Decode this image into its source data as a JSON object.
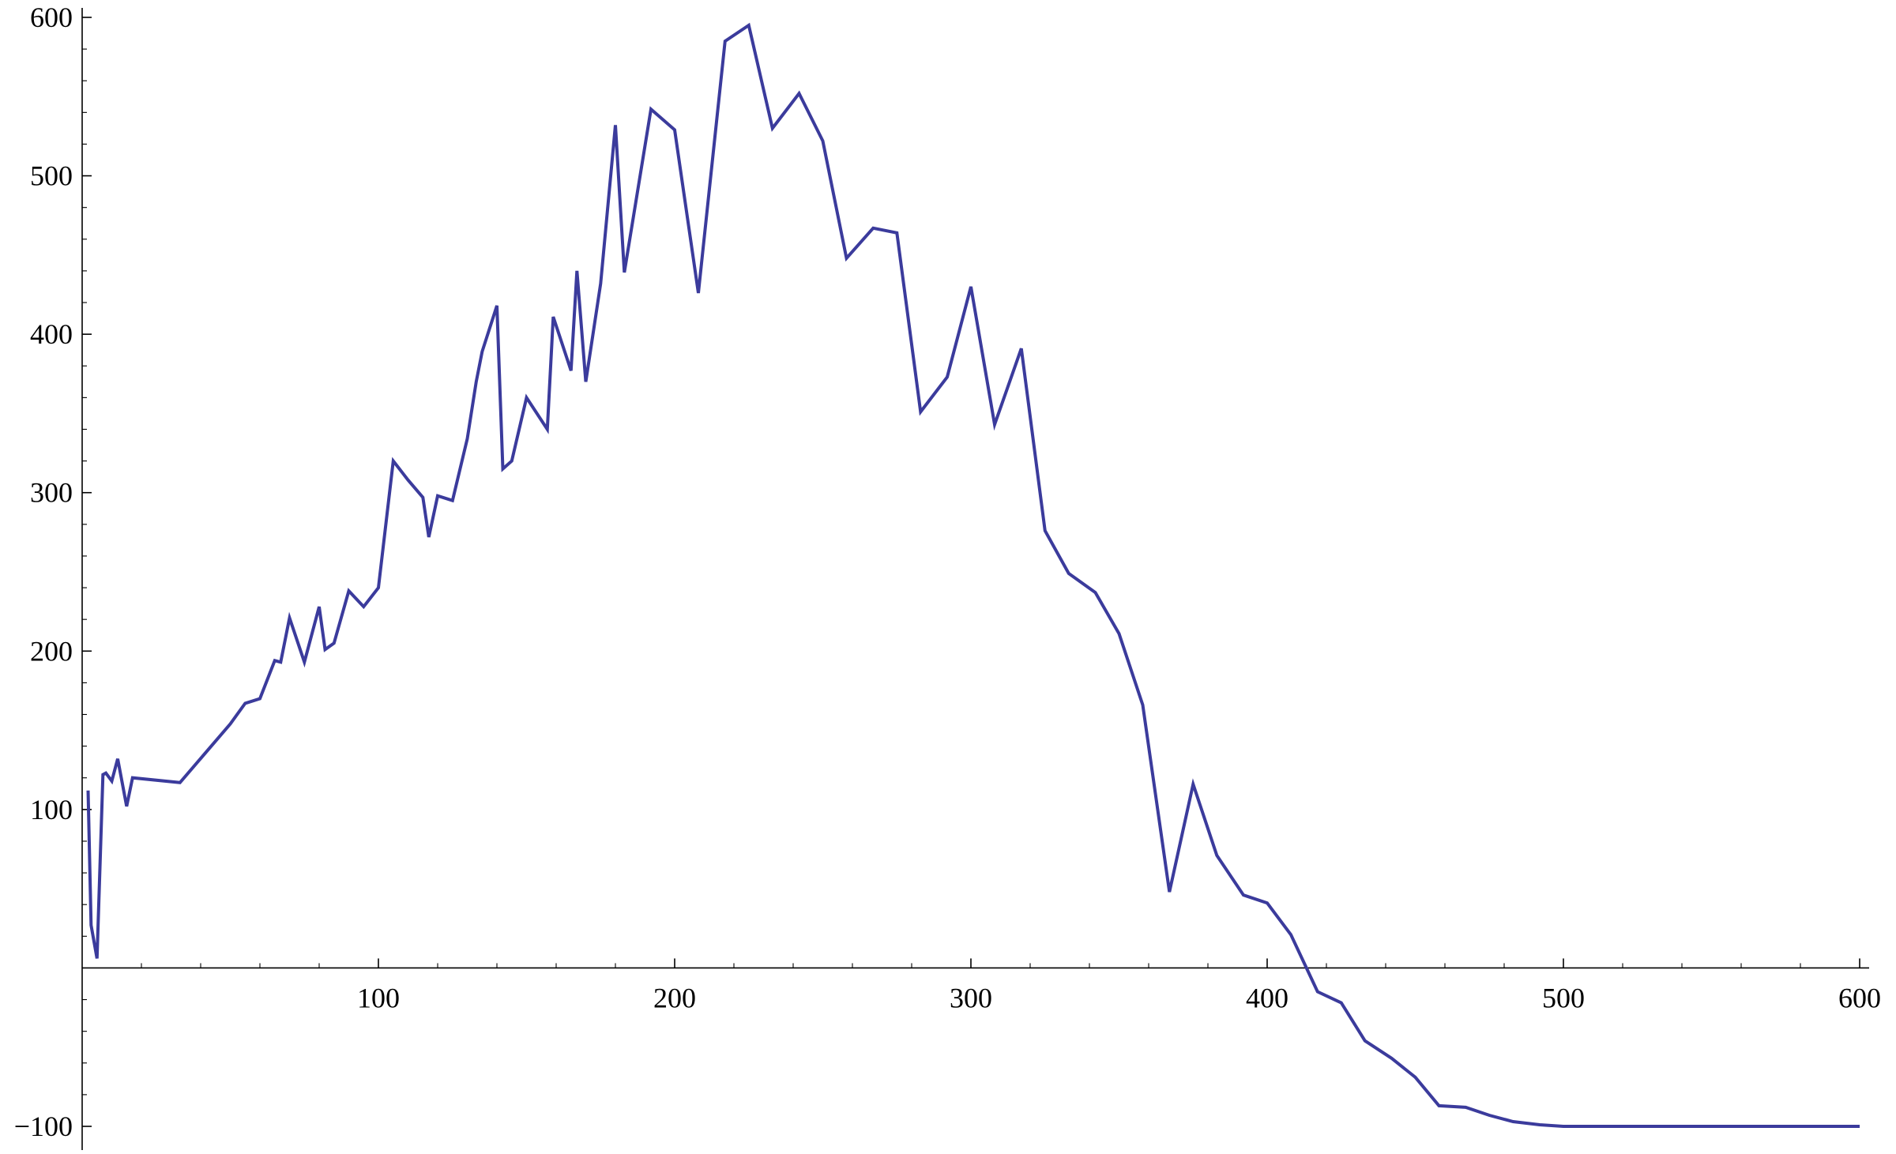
{
  "chart_data": {
    "type": "line",
    "title": "",
    "xlabel": "",
    "ylabel": "",
    "xlim": [
      0,
      600
    ],
    "ylim": [
      -100,
      600
    ],
    "grid": false,
    "legend": "none",
    "x_ticks": [
      {
        "value": 100,
        "label": "100"
      },
      {
        "value": 200,
        "label": "200"
      },
      {
        "value": 300,
        "label": "300"
      },
      {
        "value": 400,
        "label": "400"
      },
      {
        "value": 500,
        "label": "500"
      },
      {
        "value": 600,
        "label": "600"
      }
    ],
    "y_ticks": [
      {
        "value": -100,
        "label": "−100"
      },
      {
        "value": 100,
        "label": "100"
      },
      {
        "value": 200,
        "label": "200"
      },
      {
        "value": 300,
        "label": "300"
      },
      {
        "value": 400,
        "label": "400"
      },
      {
        "value": 500,
        "label": "500"
      },
      {
        "value": 600,
        "label": "600"
      }
    ],
    "series": [
      {
        "color": "#3b3b9c",
        "points": [
          [
            2,
            112
          ],
          [
            3,
            27
          ],
          [
            5,
            6
          ],
          [
            7,
            122
          ],
          [
            8,
            123
          ],
          [
            10,
            118
          ],
          [
            12,
            132
          ],
          [
            15,
            102
          ],
          [
            17,
            120
          ],
          [
            33,
            117
          ],
          [
            50,
            154
          ],
          [
            55,
            167
          ],
          [
            60,
            170
          ],
          [
            65,
            194
          ],
          [
            67,
            193
          ],
          [
            70,
            221
          ],
          [
            75,
            193
          ],
          [
            80,
            228
          ],
          [
            82,
            201
          ],
          [
            85,
            205
          ],
          [
            90,
            238
          ],
          [
            95,
            228
          ],
          [
            100,
            240
          ],
          [
            105,
            320
          ],
          [
            110,
            308
          ],
          [
            115,
            297
          ],
          [
            117,
            272
          ],
          [
            120,
            298
          ],
          [
            125,
            295
          ],
          [
            130,
            334
          ],
          [
            133,
            370
          ],
          [
            135,
            389
          ],
          [
            140,
            418
          ],
          [
            142,
            315
          ],
          [
            145,
            320
          ],
          [
            150,
            360
          ],
          [
            157,
            340
          ],
          [
            159,
            411
          ],
          [
            165,
            377
          ],
          [
            167,
            440
          ],
          [
            170,
            370
          ],
          [
            175,
            432
          ],
          [
            180,
            532
          ],
          [
            183,
            439
          ],
          [
            192,
            542
          ],
          [
            200,
            529
          ],
          [
            208,
            426
          ],
          [
            217,
            585
          ],
          [
            225,
            595
          ],
          [
            233,
            530
          ],
          [
            242,
            552
          ],
          [
            250,
            522
          ],
          [
            258,
            448
          ],
          [
            267,
            467
          ],
          [
            275,
            464
          ],
          [
            283,
            351
          ],
          [
            292,
            373
          ],
          [
            300,
            430
          ],
          [
            308,
            343
          ],
          [
            317,
            391
          ],
          [
            325,
            276
          ],
          [
            333,
            249
          ],
          [
            342,
            237
          ],
          [
            350,
            211
          ],
          [
            358,
            166
          ],
          [
            367,
            48
          ],
          [
            375,
            116
          ],
          [
            383,
            71
          ],
          [
            392,
            46
          ],
          [
            400,
            41
          ],
          [
            408,
            21
          ],
          [
            417,
            -15
          ],
          [
            425,
            -22
          ],
          [
            433,
            -46
          ],
          [
            442,
            -57
          ],
          [
            450,
            -69
          ],
          [
            458,
            -87
          ],
          [
            467,
            -88
          ],
          [
            475,
            -93
          ],
          [
            483,
            -97
          ],
          [
            492,
            -99
          ],
          [
            500,
            -100
          ],
          [
            600,
            -100
          ]
        ]
      }
    ]
  }
}
